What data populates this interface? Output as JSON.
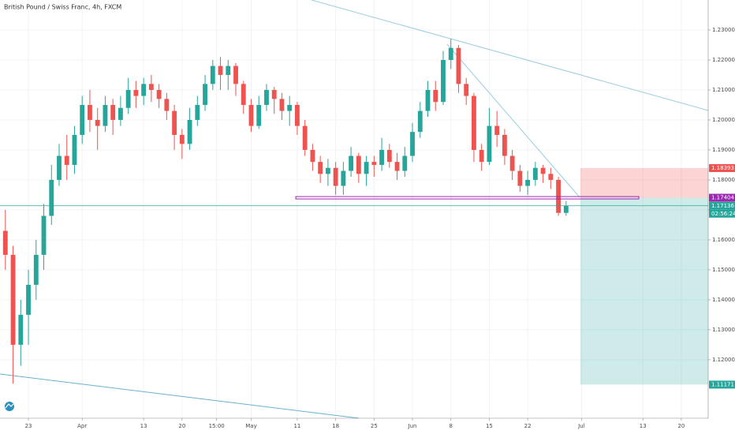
{
  "chart_data": {
    "type": "candlestick",
    "title": "British Pound / Swiss Franc, 4h, FXCM",
    "x": [
      -3,
      -2,
      -1,
      0,
      1,
      2,
      3,
      4,
      5,
      6,
      7,
      8,
      9,
      10,
      11,
      12,
      13,
      14,
      15,
      16,
      17,
      18,
      19,
      20,
      21,
      22,
      23,
      24,
      25,
      26,
      27,
      28,
      29,
      30,
      31,
      32,
      33,
      34,
      35,
      36,
      37,
      38,
      39,
      40,
      41,
      42,
      43,
      44,
      45,
      46,
      47,
      48,
      49,
      50,
      51,
      52,
      53,
      54,
      55,
      56,
      57,
      58,
      59,
      60,
      61,
      62,
      63,
      64,
      65,
      66,
      67,
      68,
      69,
      70
    ],
    "open": [
      1.163,
      1.155,
      1.125,
      1.135,
      1.145,
      1.155,
      1.168,
      1.18,
      1.188,
      1.185,
      1.195,
      1.205,
      1.2,
      1.198,
      1.205,
      1.2,
      1.204,
      1.21,
      1.208,
      1.212,
      1.21,
      1.207,
      1.203,
      1.195,
      1.192,
      1.2,
      1.205,
      1.212,
      1.218,
      1.215,
      1.218,
      1.212,
      1.205,
      1.198,
      1.205,
      1.21,
      1.207,
      1.203,
      1.205,
      1.198,
      1.19,
      1.186,
      1.182,
      1.184,
      1.178,
      1.183,
      1.188,
      1.182,
      1.186,
      1.185,
      1.19,
      1.186,
      1.183,
      1.188,
      1.196,
      1.203,
      1.21,
      1.206,
      1.22,
      1.224,
      1.212,
      1.208,
      1.19,
      1.186,
      1.198,
      1.195,
      1.188,
      1.183,
      1.178,
      1.18,
      1.184,
      1.182,
      1.18,
      1.169
    ],
    "high": [
      1.17,
      1.158,
      1.14,
      1.15,
      1.16,
      1.172,
      1.185,
      1.192,
      1.195,
      1.198,
      1.208,
      1.21,
      1.204,
      1.208,
      1.207,
      1.208,
      1.214,
      1.213,
      1.214,
      1.215,
      1.212,
      1.209,
      1.205,
      1.197,
      1.204,
      1.208,
      1.215,
      1.22,
      1.221,
      1.22,
      1.219,
      1.213,
      1.207,
      1.208,
      1.212,
      1.211,
      1.209,
      1.208,
      1.206,
      1.2,
      1.192,
      1.188,
      1.187,
      1.186,
      1.186,
      1.191,
      1.189,
      1.188,
      1.188,
      1.194,
      1.192,
      1.189,
      1.191,
      1.199,
      1.206,
      1.213,
      1.213,
      1.223,
      1.227,
      1.225,
      1.214,
      1.209,
      1.192,
      1.204,
      1.203,
      1.197,
      1.19,
      1.185,
      1.183,
      1.186,
      1.185,
      1.184,
      1.181,
      1.173
    ],
    "low": [
      1.15,
      1.112,
      1.118,
      1.125,
      1.14,
      1.15,
      1.165,
      1.178,
      1.18,
      1.182,
      1.192,
      1.196,
      1.19,
      1.196,
      1.195,
      1.198,
      1.202,
      1.204,
      1.205,
      1.206,
      1.204,
      1.2,
      1.19,
      1.187,
      1.19,
      1.198,
      1.203,
      1.21,
      1.21,
      1.21,
      1.208,
      1.202,
      1.196,
      1.197,
      1.203,
      1.202,
      1.2,
      1.198,
      1.195,
      1.188,
      1.183,
      1.179,
      1.178,
      1.175,
      1.175,
      1.181,
      1.179,
      1.178,
      1.181,
      1.183,
      1.184,
      1.18,
      1.181,
      1.186,
      1.194,
      1.201,
      1.203,
      1.205,
      1.217,
      1.209,
      1.205,
      1.186,
      1.183,
      1.185,
      1.191,
      1.185,
      1.18,
      1.176,
      1.175,
      1.178,
      1.179,
      1.177,
      1.168,
      1.168
    ],
    "close": [
      1.155,
      1.125,
      1.135,
      1.145,
      1.155,
      1.168,
      1.18,
      1.188,
      1.185,
      1.195,
      1.205,
      1.2,
      1.198,
      1.205,
      1.2,
      1.204,
      1.21,
      1.208,
      1.212,
      1.21,
      1.207,
      1.203,
      1.195,
      1.192,
      1.2,
      1.205,
      1.212,
      1.218,
      1.215,
      1.218,
      1.212,
      1.205,
      1.198,
      1.205,
      1.21,
      1.207,
      1.203,
      1.205,
      1.198,
      1.19,
      1.186,
      1.182,
      1.184,
      1.178,
      1.183,
      1.188,
      1.182,
      1.186,
      1.185,
      1.19,
      1.186,
      1.183,
      1.188,
      1.196,
      1.203,
      1.21,
      1.206,
      1.22,
      1.224,
      1.212,
      1.208,
      1.19,
      1.186,
      1.198,
      1.195,
      1.188,
      1.183,
      1.178,
      1.18,
      1.184,
      1.182,
      1.18,
      1.169,
      1.17136
    ],
    "up_color": "#26a69a",
    "down_color": "#ef5350",
    "xlim": [
      -3.7,
      88.5
    ],
    "ylim": [
      1.1005,
      1.24
    ],
    "xticks": [
      {
        "value": 0,
        "label": "23"
      },
      {
        "value": 7,
        "label": "Apr"
      },
      {
        "value": 15,
        "label": "13"
      },
      {
        "value": 20,
        "label": "20"
      },
      {
        "value": 24.5,
        "label": "15:00"
      },
      {
        "value": 29,
        "label": "May"
      },
      {
        "value": 35,
        "label": "11"
      },
      {
        "value": 40,
        "label": "18"
      },
      {
        "value": 45,
        "label": "25"
      },
      {
        "value": 50,
        "label": "Jun"
      },
      {
        "value": 55,
        "label": "8"
      },
      {
        "value": 60,
        "label": "15"
      },
      {
        "value": 65,
        "label": "22"
      },
      {
        "value": 72,
        "label": "Jul"
      },
      {
        "value": 80,
        "label": "13"
      },
      {
        "value": 85,
        "label": "20"
      }
    ],
    "yticks": [
      {
        "value": 1.12,
        "label": "1.12000"
      },
      {
        "value": 1.13,
        "label": "1.13000"
      },
      {
        "value": 1.14,
        "label": "1.14000"
      },
      {
        "value": 1.15,
        "label": "1.15000"
      },
      {
        "value": 1.16,
        "label": "1.16000"
      },
      {
        "value": 1.17,
        "label": "1.17000"
      },
      {
        "value": 1.18,
        "label": "1.18000"
      },
      {
        "value": 1.19,
        "label": "1.19000"
      },
      {
        "value": 1.2,
        "label": "1.20000"
      },
      {
        "value": 1.21,
        "label": "1.21000"
      },
      {
        "value": 1.22,
        "label": "1.22000"
      },
      {
        "value": 1.23,
        "label": "1.23000"
      }
    ],
    "grid": true,
    "price_labels": [
      {
        "value": 1.18393,
        "color": "#ef5350"
      },
      {
        "value": 1.17404,
        "color": "#9c27b0"
      },
      {
        "value": 1.17136,
        "color": "#26a69a"
      },
      {
        "value": 1.11171,
        "color": "#26a69a"
      }
    ],
    "countdown": "02:56:24"
  }
}
